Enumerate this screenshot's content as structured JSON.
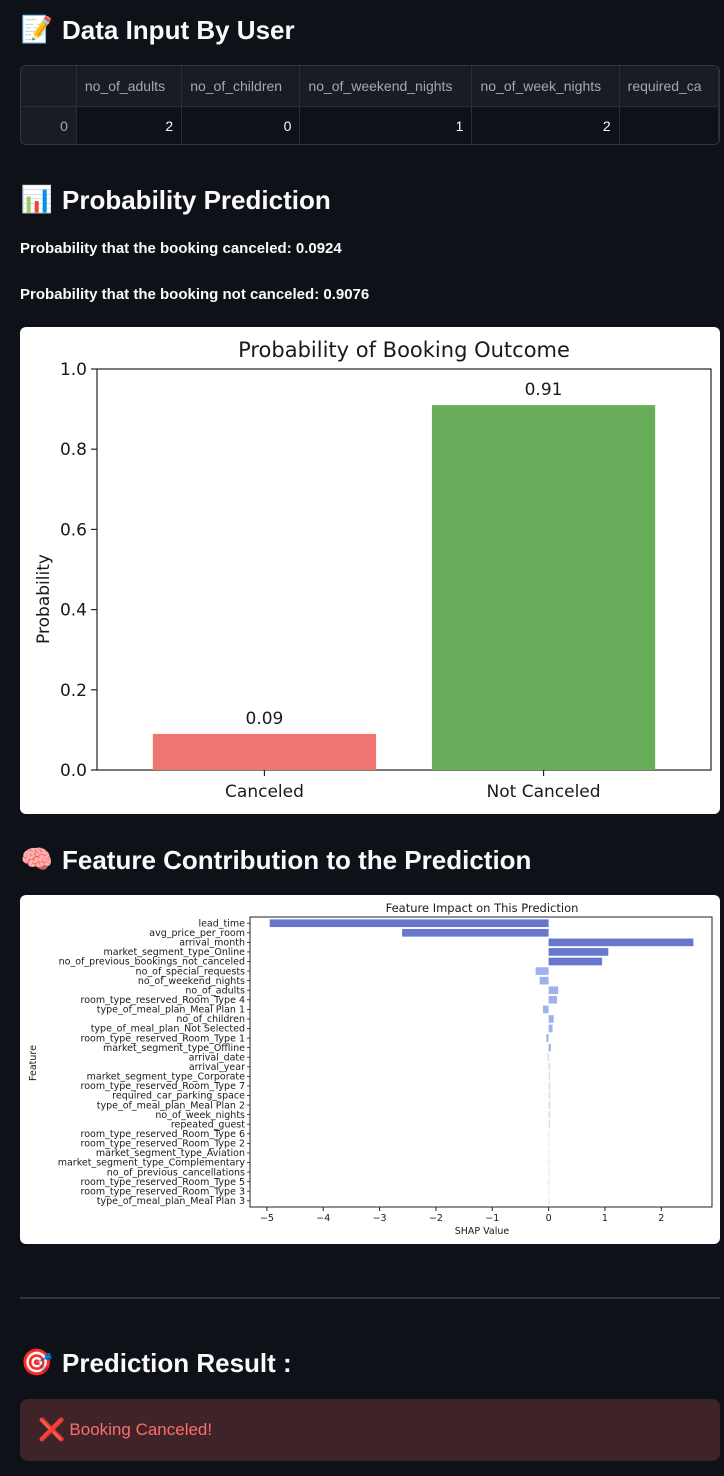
{
  "sections": {
    "data_input": {
      "icon": "memo-icon",
      "glyph": "📝",
      "title": "Data Input By User"
    },
    "probability": {
      "icon": "bar-chart-icon",
      "glyph": "📊",
      "title": "Probability Prediction"
    },
    "feature": {
      "icon": "brain-icon",
      "glyph": "🧠",
      "title": "Feature Contribution to the Prediction"
    },
    "result": {
      "icon": "target-icon",
      "glyph": "🎯",
      "title": "Prediction Result :"
    }
  },
  "input_table": {
    "columns": [
      "no_of_adults",
      "no_of_children",
      "no_of_weekend_nights",
      "no_of_week_nights",
      "required_ca"
    ],
    "rows": [
      {
        "index": "0",
        "cells": [
          "2",
          "0",
          "1",
          "2",
          ""
        ]
      }
    ]
  },
  "probability_text": {
    "canceled": "Probability that the booking canceled: 0.0924",
    "not_canceled": "Probability that the booking not canceled: 0.9076"
  },
  "chart_data": [
    {
      "type": "bar",
      "title": "Probability of Booking Outcome",
      "xlabel": "",
      "ylabel": "Probability",
      "categories": [
        "Canceled",
        "Not Canceled"
      ],
      "values": [
        0.09,
        0.91
      ],
      "data_labels": [
        "0.09",
        "0.91"
      ],
      "colors": [
        "#ef7570",
        "#68ad5a"
      ],
      "ylim": [
        0,
        1.0
      ],
      "yticks": [
        "0.0",
        "0.2",
        "0.4",
        "0.6",
        "0.8",
        "1.0"
      ],
      "grid": false
    },
    {
      "type": "bar",
      "orientation": "horizontal",
      "title": "Feature Impact on This Prediction",
      "xlabel": "SHAP Value",
      "ylabel": "Feature",
      "xlim": [
        -5.3,
        2.9
      ],
      "xticks": [
        "−5",
        "−4",
        "−3",
        "−2",
        "−1",
        "0",
        "1",
        "2"
      ],
      "colors": {
        "strong": "#6677cc",
        "light": "#9fb2ee",
        "faint": "#d8dcef"
      },
      "features": [
        {
          "name": "lead_time",
          "value": -4.95
        },
        {
          "name": "avg_price_per_room",
          "value": -2.6
        },
        {
          "name": "arrival_month",
          "value": 2.57
        },
        {
          "name": "market_segment_type_Online",
          "value": 1.06
        },
        {
          "name": "no_of_previous_bookings_not_canceled",
          "value": 0.95
        },
        {
          "name": "no_of_special_requests",
          "value": -0.23
        },
        {
          "name": "no_of_weekend_nights",
          "value": -0.16
        },
        {
          "name": "no_of_adults",
          "value": 0.17
        },
        {
          "name": "room_type_reserved_Room_Type 4",
          "value": 0.15
        },
        {
          "name": "type_of_meal_plan_Meal Plan 1",
          "value": -0.1
        },
        {
          "name": "no_of_children",
          "value": 0.09
        },
        {
          "name": "type_of_meal_plan_Not Selected",
          "value": 0.07
        },
        {
          "name": "room_type_reserved_Room_Type 1",
          "value": -0.04
        },
        {
          "name": "market_segment_type_Offline",
          "value": 0.04
        },
        {
          "name": "arrival_date",
          "value": -0.02
        },
        {
          "name": "arrival_year",
          "value": 0.02
        },
        {
          "name": "market_segment_type_Corporate",
          "value": 0.02
        },
        {
          "name": "room_type_reserved_Room_Type 7",
          "value": 0.02
        },
        {
          "name": "required_car_parking_space",
          "value": 0.015
        },
        {
          "name": "type_of_meal_plan_Meal Plan 2",
          "value": 0.012
        },
        {
          "name": "no_of_week_nights",
          "value": 0.01
        },
        {
          "name": "repeated_guest",
          "value": 0.01
        },
        {
          "name": "room_type_reserved_Room_Type 6",
          "value": 0.0
        },
        {
          "name": "room_type_reserved_Room_Type 2",
          "value": 0.0
        },
        {
          "name": "market_segment_type_Aviation",
          "value": 0.0
        },
        {
          "name": "market_segment_type_Complementary",
          "value": 0.0
        },
        {
          "name": "no_of_previous_cancellations",
          "value": 0.0
        },
        {
          "name": "room_type_reserved_Room_Type 5",
          "value": 0.0
        },
        {
          "name": "room_type_reserved_Room_Type 3",
          "value": 0.0
        },
        {
          "name": "type_of_meal_plan_Meal Plan 3",
          "value": 0.0
        }
      ]
    }
  ],
  "result_alert": {
    "icon": "cross-mark-icon",
    "glyph": "❌",
    "text": "Booking Canceled!"
  }
}
